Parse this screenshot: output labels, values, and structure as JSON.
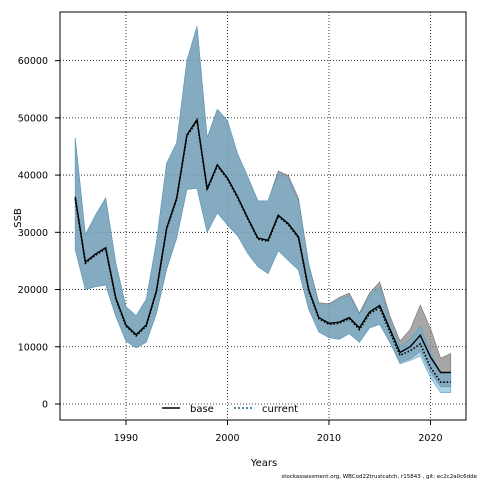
{
  "chart_data": {
    "type": "line",
    "xlabel": "Years",
    "ylabel": "SSB",
    "xlim": [
      1983.5,
      2023.5
    ],
    "ylim": [
      -2800,
      68500
    ],
    "xticks": [
      1990,
      2000,
      2010,
      2020
    ],
    "yticks": [
      0,
      10000,
      20000,
      30000,
      40000,
      50000,
      60000
    ],
    "grid": true,
    "legend_placement": "bottom-center",
    "caption": "stockassessment.org, WBCod22trustcatch, r15843 , git: ec2c2a0c6dde",
    "colors": {
      "base_band": "#8a8a8a",
      "current_band": "#6aaed6",
      "base_line": "#000000",
      "current_line": "#000000"
    },
    "x": [
      1985,
      1986,
      1987,
      1988,
      1989,
      1990,
      1991,
      1992,
      1993,
      1994,
      1995,
      1996,
      1997,
      1998,
      1999,
      2000,
      2001,
      2002,
      2003,
      2004,
      2005,
      2006,
      2007,
      2008,
      2009,
      2010,
      2011,
      2012,
      2013,
      2014,
      2015,
      2016,
      2017,
      2018,
      2019,
      2020,
      2021,
      2022
    ],
    "series": [
      {
        "name": "base",
        "style": "solid",
        "values": [
          36200,
          24800,
          26200,
          27300,
          18500,
          13800,
          12100,
          13800,
          19800,
          30700,
          36000,
          47000,
          49700,
          37600,
          41800,
          39500,
          36200,
          32500,
          29000,
          28600,
          33000,
          31500,
          29200,
          20000,
          15100,
          14100,
          14300,
          15100,
          13300,
          16100,
          17200,
          13100,
          9000,
          10000,
          12000,
          8200,
          5500,
          5500
        ],
        "band_lower": [
          27000,
          20000,
          20500,
          20800,
          15300,
          11000,
          9800,
          10800,
          15800,
          23500,
          29000,
          37500,
          37700,
          30000,
          33400,
          31300,
          29400,
          26300,
          24000,
          22800,
          26800,
          25100,
          23400,
          16600,
          12600,
          11600,
          11300,
          12300,
          10800,
          13300,
          13900,
          10800,
          7200,
          7900,
          9200,
          5500,
          3000,
          3000
        ],
        "band_upper": [
          46500,
          29600,
          33000,
          36000,
          24600,
          17000,
          15400,
          18300,
          28300,
          42000,
          45700,
          60000,
          66000,
          46500,
          51500,
          49500,
          43700,
          39700,
          35500,
          35500,
          40700,
          39900,
          35900,
          24500,
          17700,
          17500,
          18600,
          19400,
          15900,
          19400,
          21300,
          15400,
          11000,
          13000,
          17300,
          13200,
          8000,
          8800
        ]
      },
      {
        "name": "current",
        "style": "dotted",
        "values": [
          35800,
          24600,
          26000,
          27100,
          18300,
          13600,
          11900,
          13600,
          19600,
          30500,
          35800,
          46800,
          49500,
          37400,
          41600,
          39300,
          36000,
          32300,
          28800,
          28400,
          32800,
          31300,
          29000,
          19800,
          14900,
          13900,
          14100,
          14900,
          13000,
          15800,
          16800,
          12600,
          8500,
          9300,
          10500,
          6400,
          3800,
          3800
        ],
        "band_lower": [
          27000,
          20000,
          20500,
          20800,
          15300,
          11000,
          9800,
          10800,
          15800,
          23500,
          29000,
          37500,
          37700,
          30000,
          33400,
          31300,
          29400,
          26300,
          24000,
          22800,
          26800,
          25100,
          23400,
          16600,
          12600,
          11600,
          11300,
          12300,
          10800,
          13300,
          13900,
          10800,
          7000,
          7600,
          8400,
          4600,
          2000,
          2000
        ],
        "band_upper": [
          46500,
          29600,
          33000,
          36000,
          24600,
          17000,
          15400,
          18300,
          28300,
          42000,
          45700,
          60000,
          66000,
          46500,
          51500,
          49500,
          43700,
          39700,
          35500,
          35500,
          40200,
          39400,
          35400,
          24200,
          17400,
          17200,
          18200,
          19000,
          15600,
          18900,
          20500,
          14400,
          10000,
          11200,
          13600,
          9000,
          5500,
          5600
        ]
      }
    ]
  }
}
